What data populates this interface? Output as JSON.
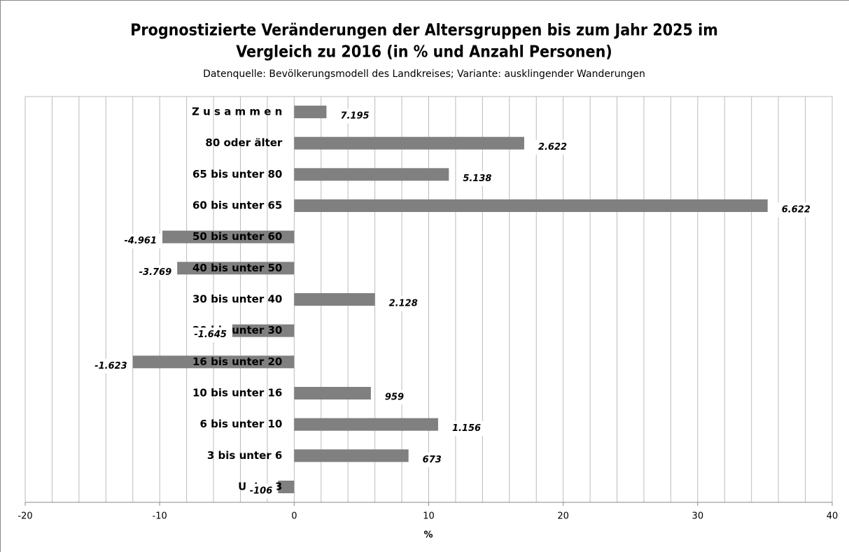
{
  "chart_data": {
    "type": "barh",
    "title": [
      "Prognostizierte Veränderungen der Altersgruppen bis zum Jahr 2025 im",
      "Vergleich zu 2016 (in % und Anzahl Personen)"
    ],
    "subtitle": "Datenquelle: Bevölkerungsmodell des Landkreises; Variante: ausklingender Wanderungen",
    "x_label": "%",
    "categories": [
      "Z u s a m m e n",
      "80 oder älter",
      "65 bis unter 80",
      "60 bis unter 65",
      "50 bis unter 60",
      "40 bis unter 50",
      "30 bis unter 40",
      "20 bis unter 30",
      "16 bis unter 20",
      "10 bis unter 16",
      "6 bis unter 10",
      "3 bis unter   6",
      "Unter  3"
    ],
    "values": [
      2.4,
      17.1,
      11.5,
      35.2,
      -9.8,
      -8.7,
      6.0,
      -4.6,
      -12.0,
      5.7,
      10.7,
      8.5,
      -1.2
    ],
    "count_labels": [
      "7.195",
      "2.622",
      "5.138",
      "6.622",
      "-4.961",
      "-3.769",
      "2.128",
      "-1.645",
      "-1.623",
      "959",
      "1.156",
      "673",
      "-106"
    ],
    "color": "#808080",
    "xlim": [
      -20,
      40
    ],
    "xticks": [
      -20,
      -10,
      0,
      10,
      20,
      30,
      40
    ],
    "xgrid": [
      -18,
      -16,
      -14,
      -12,
      -10,
      -8,
      -6,
      -4,
      -2,
      0,
      2,
      4,
      6,
      8,
      10,
      12,
      14,
      16,
      18,
      20,
      22,
      24,
      26,
      28,
      30,
      32,
      34,
      36,
      38
    ],
    "grid": true
  }
}
